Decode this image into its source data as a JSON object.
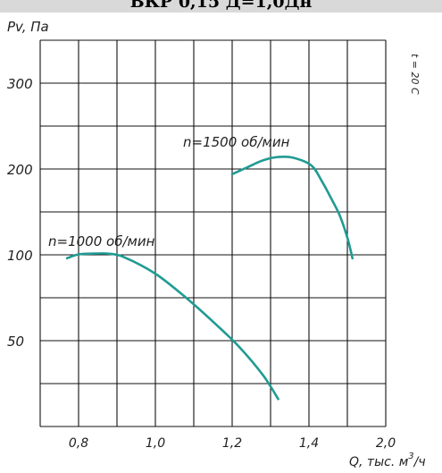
{
  "header": {
    "title": "ВКР 0,15 Д=1,0Дн"
  },
  "chart_data": {
    "type": "line",
    "ylabel": "Pv, Па",
    "xlabel": "Q, тыс. м³/ч",
    "xlabel_parts": {
      "prefix": "Q, тыс. м",
      "sup": "3",
      "suffix": "/ч"
    },
    "side_note": "t = 20 С",
    "x_ticks": [
      "0,8",
      "1,0",
      "1,2",
      "1,4",
      "2,0"
    ],
    "y_ticks": [
      "50",
      "100",
      "200",
      "300"
    ],
    "grid": true,
    "series": [
      {
        "name": "n=1000 об/мин",
        "color": "#1f9b93",
        "points": [
          [
            0.74,
            98
          ],
          [
            0.8,
            100.5
          ],
          [
            0.84,
            101.5
          ],
          [
            0.88,
            101.3
          ],
          [
            0.92,
            98.5
          ],
          [
            1.0,
            89
          ],
          [
            1.08,
            75
          ],
          [
            1.16,
            59
          ],
          [
            1.22,
            46
          ],
          [
            1.28,
            30
          ],
          [
            1.32,
            16
          ]
        ]
      },
      {
        "name": "n=1500 об/мин",
        "color": "#1f9b93",
        "points": [
          [
            1.2,
            194
          ],
          [
            1.24,
            202
          ],
          [
            1.28,
            210
          ],
          [
            1.32,
            214
          ],
          [
            1.36,
            213
          ],
          [
            1.42,
            204
          ],
          [
            1.5,
            186
          ],
          [
            1.58,
            164
          ],
          [
            1.64,
            146
          ],
          [
            1.7,
            120
          ],
          [
            1.74,
            98
          ]
        ]
      }
    ]
  }
}
